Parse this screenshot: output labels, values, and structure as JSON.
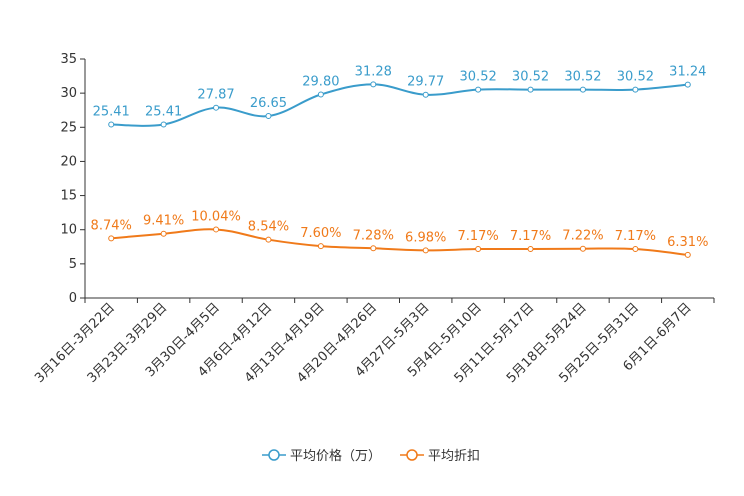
{
  "chart_data": {
    "type": "line",
    "categories": [
      "3月16日-3月22日",
      "3月23日-3月29日",
      "3月30日-4月5日",
      "4月6日-4月12日",
      "4月13日-4月19日",
      "4月20日-4月26日",
      "4月27日-5月3日",
      "5月4日-5月10日",
      "5月11日-5月17日",
      "5月18日-5月24日",
      "5月25日-5月31日",
      "6月1日-6月7日"
    ],
    "ylim": [
      0,
      35
    ],
    "yticks": [
      0,
      5,
      10,
      15,
      20,
      25,
      30,
      35
    ],
    "series": [
      {
        "name": "平均价格（万）",
        "color": "#3a9ccb",
        "values": [
          25.41,
          25.41,
          27.87,
          26.65,
          29.8,
          31.28,
          29.77,
          30.52,
          30.52,
          30.52,
          30.52,
          31.24
        ],
        "labels": [
          "25.41",
          "25.41",
          "27.87",
          "26.65",
          "29.80",
          "31.28",
          "29.77",
          "30.52",
          "30.52",
          "30.52",
          "30.52",
          "31.24"
        ]
      },
      {
        "name": "平均折扣",
        "color": "#f07a1a",
        "values": [
          8.74,
          9.41,
          10.04,
          8.54,
          7.6,
          7.28,
          6.98,
          7.17,
          7.17,
          7.22,
          7.17,
          6.31
        ],
        "labels": [
          "8.74%",
          "9.41%",
          "10.04%",
          "8.54%",
          "7.60%",
          "7.28%",
          "6.98%",
          "7.17%",
          "7.17%",
          "7.22%",
          "7.17%",
          "6.31%"
        ]
      }
    ],
    "legend": "bottom-center"
  }
}
